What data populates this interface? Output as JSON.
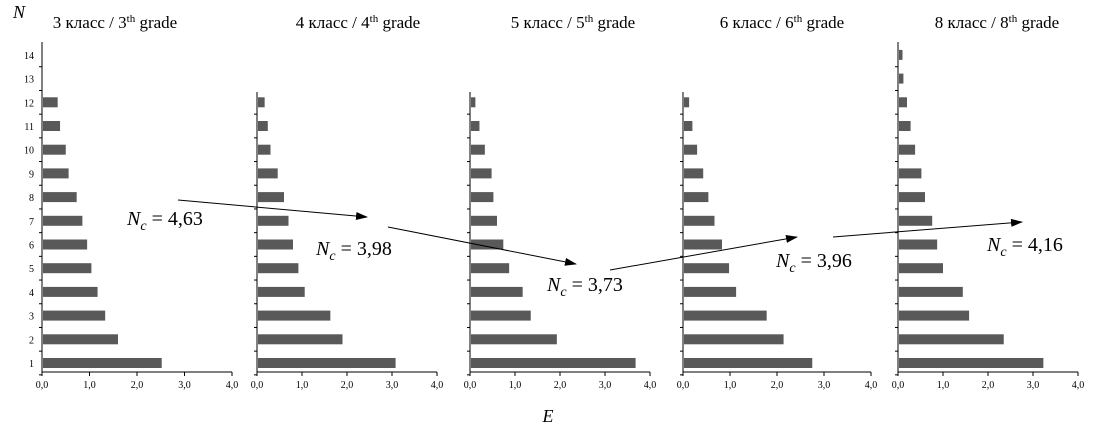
{
  "figure": {
    "y_axis_label": "N",
    "x_axis_label": "E"
  },
  "chart_data": [
    {
      "type": "bar",
      "orientation": "horizontal",
      "title_main": "3 класс / 3",
      "title_sup": "th",
      "title_end": " grade",
      "categories": [
        1,
        2,
        3,
        4,
        5,
        6,
        7,
        8,
        9,
        10,
        11,
        12,
        13,
        14
      ],
      "values": [
        2.52,
        1.6,
        1.33,
        1.17,
        1.04,
        0.95,
        0.85,
        0.73,
        0.56,
        0.5,
        0.38,
        0.33,
        null,
        null
      ],
      "xlim": [
        0,
        4
      ],
      "xticks": [
        "0,0",
        "1,0",
        "2,0",
        "3,0",
        "4,0"
      ],
      "yticks_visible": true,
      "annotation": {
        "symbol": "N",
        "subscript": "c",
        "text": " = 4,63"
      }
    },
    {
      "type": "bar",
      "orientation": "horizontal",
      "title_main": "4 класс / 4",
      "title_sup": "th",
      "title_end": " grade",
      "categories": [
        1,
        2,
        3,
        4,
        5,
        6,
        7,
        8,
        9,
        10,
        11,
        12,
        13,
        14
      ],
      "values": [
        3.08,
        1.9,
        1.63,
        1.06,
        0.92,
        0.8,
        0.7,
        0.6,
        0.46,
        0.3,
        0.24,
        0.17,
        null,
        null
      ],
      "xlim": [
        0,
        4
      ],
      "xticks": [
        "0,0",
        "1,0",
        "2,0",
        "3,0",
        "4,0"
      ],
      "yticks_visible": false,
      "annotation": {
        "symbol": "N",
        "subscript": "c",
        "text": " = 3,98"
      }
    },
    {
      "type": "bar",
      "orientation": "horizontal",
      "title_main": "5 класс / 5",
      "title_sup": "th",
      "title_end": " grade",
      "categories": [
        1,
        2,
        3,
        4,
        5,
        6,
        7,
        8,
        9,
        10,
        11,
        12,
        13,
        14
      ],
      "values": [
        3.68,
        1.93,
        1.35,
        1.17,
        0.87,
        0.74,
        0.6,
        0.52,
        0.48,
        0.33,
        0.21,
        0.12,
        null,
        null
      ],
      "xlim": [
        0,
        4
      ],
      "xticks": [
        "0,0",
        "1,0",
        "2,0",
        "3,0",
        "4,0"
      ],
      "yticks_visible": false,
      "annotation": {
        "symbol": "N",
        "subscript": "c",
        "text": " = 3,73"
      }
    },
    {
      "type": "bar",
      "orientation": "horizontal",
      "title_main": "6 класс / 6",
      "title_sup": "th",
      "title_end": " grade",
      "categories": [
        1,
        2,
        3,
        4,
        5,
        6,
        7,
        8,
        9,
        10,
        11,
        12,
        13,
        14
      ],
      "values": [
        2.75,
        2.14,
        1.78,
        1.13,
        0.98,
        0.83,
        0.67,
        0.54,
        0.43,
        0.3,
        0.2,
        0.13,
        null,
        null
      ],
      "xlim": [
        0,
        4
      ],
      "xticks": [
        "0,0",
        "1,0",
        "2,0",
        "3,0",
        "4,0"
      ],
      "yticks_visible": false,
      "annotation": {
        "symbol": "N",
        "subscript": "c",
        "text": " = 3,96"
      }
    },
    {
      "type": "bar",
      "orientation": "horizontal",
      "title_main": "8 класс / 8",
      "title_sup": "th",
      "title_end": " grade",
      "categories": [
        1,
        2,
        3,
        4,
        5,
        6,
        7,
        8,
        9,
        10,
        11,
        12,
        13,
        14
      ],
      "values": [
        3.23,
        2.35,
        1.58,
        1.44,
        1.0,
        0.87,
        0.76,
        0.6,
        0.52,
        0.38,
        0.28,
        0.2,
        0.12,
        0.1
      ],
      "xlim": [
        0,
        4
      ],
      "xticks": [
        "0,0",
        "1,0",
        "2,0",
        "3,0",
        "4,0"
      ],
      "yticks_visible": false,
      "annotation": {
        "symbol": "N",
        "subscript": "c",
        "text": " = 4,16"
      }
    }
  ],
  "colors": {
    "bar": "#595959",
    "axis": "#000000",
    "text": "#000000"
  }
}
